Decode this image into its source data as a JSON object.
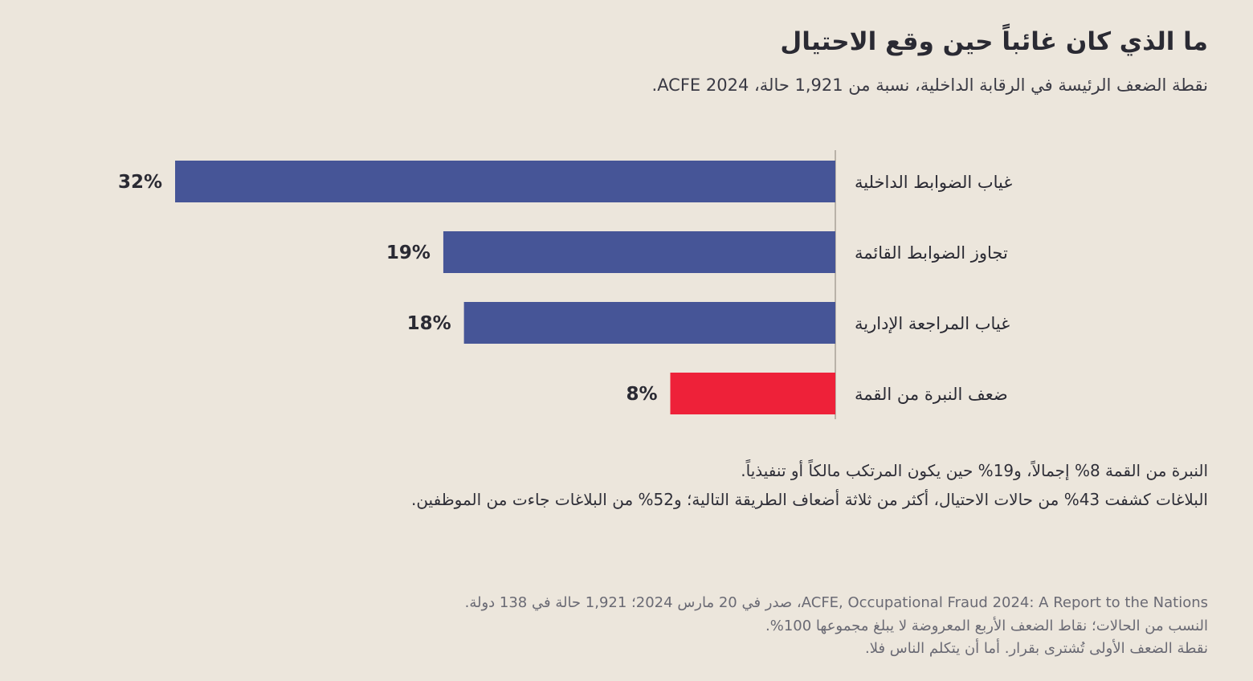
{
  "header": {
    "title": "ما الذي كان غائباً حين وقع الاحتيال",
    "subtitle": "نقطة الضعف الرئيسة في الرقابة الداخلية، نسبة من 1,921 حالة، ACFE 2024."
  },
  "chart_data": {
    "type": "bar",
    "orientation": "horizontal",
    "categories": [
      "غياب الضوابط الداخلية",
      "تجاوز الضوابط القائمة",
      "غياب المراجعة الإدارية",
      "ضعف النبرة من القمة"
    ],
    "values": [
      32,
      19,
      18,
      8
    ],
    "value_labels": [
      "32%",
      "19%",
      "18%",
      "8%"
    ],
    "colors": [
      "#465597",
      "#465597",
      "#465597",
      "#ee2139"
    ],
    "unit": "%",
    "xlim": [
      0,
      32
    ],
    "title": "",
    "xlabel": "",
    "ylabel": "",
    "grid": false,
    "legend": "none"
  },
  "notes": {
    "line1": "النبرة من القمة 8% إجمالاً، و19% حين يكون المرتكب مالكاً أو تنفيذياً.",
    "line2": "البلاغات كشفت 43% من حالات الاحتيال، أكثر من ثلاثة أضعاف الطريقة التالية؛ و52% من البلاغات جاءت من الموظفين."
  },
  "source": {
    "line1": "ACFE, Occupational Fraud 2024: A Report to the Nations، صدر في 20 مارس 2024؛ 1,921 حالة في 138 دولة.",
    "line2": "النسب من الحالات؛ نقاط الضعف الأربع المعروضة لا يبلغ مجموعها 100%.",
    "line3": "نقطة الضعف الأولى تُشترى بقرار. أما أن يتكلم الناس فلا."
  }
}
